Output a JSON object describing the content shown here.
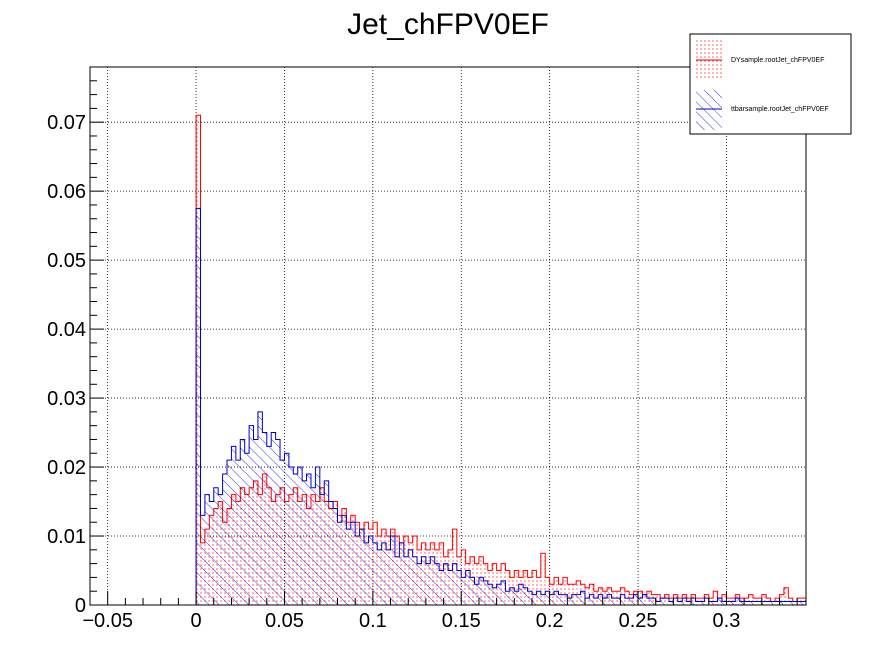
{
  "colors": {
    "series_1": "#ff0000",
    "series_2": "#0000cc",
    "axis": "#000000",
    "grid": "#000000",
    "background": "#ffffff"
  },
  "chart_data": {
    "type": "bar",
    "style": "step-histogram",
    "title": "Jet_chFPV0EF",
    "xlabel": "",
    "ylabel": "",
    "xlim": [
      -0.06,
      0.345
    ],
    "ylim": [
      0,
      0.078
    ],
    "xticks": [
      "−0.05",
      "0",
      "0.05",
      "0.1",
      "0.15",
      "0.2",
      "0.25",
      "0.3"
    ],
    "xtick_values": [
      -0.05,
      0,
      0.05,
      0.1,
      0.15,
      0.2,
      0.25,
      0.3
    ],
    "yticks": [
      "0",
      "0.01",
      "0.02",
      "0.03",
      "0.04",
      "0.05",
      "0.06",
      "0.07"
    ],
    "ytick_values": [
      0,
      0.01,
      0.02,
      0.03,
      0.04,
      0.05,
      0.06,
      0.07
    ],
    "grid": true,
    "legend_position": "top-right",
    "bin_start": 0,
    "bin_width": 0.0025,
    "series": [
      {
        "name": "DYsample.rootJet_chFPV0EF",
        "fill": "dotted",
        "values": [
          0.071,
          0.009,
          0.011,
          0.013,
          0.014,
          0.015,
          0.012,
          0.014,
          0.016,
          0.015,
          0.017,
          0.016,
          0.017,
          0.018,
          0.016,
          0.019,
          0.017,
          0.015,
          0.016,
          0.017,
          0.015,
          0.016,
          0.017,
          0.015,
          0.016,
          0.014,
          0.016,
          0.015,
          0.017,
          0.015,
          0.014,
          0.015,
          0.013,
          0.014,
          0.012,
          0.013,
          0.012,
          0.011,
          0.012,
          0.011,
          0.012,
          0.01,
          0.011,
          0.01,
          0.011,
          0.01,
          0.009,
          0.01,
          0.009,
          0.01,
          0.008,
          0.009,
          0.008,
          0.009,
          0.008,
          0.009,
          0.007,
          0.008,
          0.011,
          0.007,
          0.008,
          0.006,
          0.007,
          0.006,
          0.007,
          0.006,
          0.005,
          0.006,
          0.005,
          0.006,
          0.005,
          0.004,
          0.005,
          0.004,
          0.005,
          0.004,
          0.005,
          0.004,
          0.0075,
          0.004,
          0.003,
          0.004,
          0.003,
          0.004,
          0.003,
          0.003,
          0.0035,
          0.003,
          0.0025,
          0.003,
          0.002,
          0.0025,
          0.002,
          0.0025,
          0.002,
          0.002,
          0.0025,
          0.002,
          0.0015,
          0.002,
          0.002,
          0.0015,
          0.002,
          0.0015,
          0.0015,
          0.001,
          0.0015,
          0.001,
          0.0015,
          0.001,
          0.0015,
          0.001,
          0.0015,
          0.001,
          0.001,
          0.0015,
          0.001,
          0.002,
          0.001,
          0.0015,
          0.001,
          0.001,
          0.0015,
          0.001,
          0.001,
          0.0015,
          0.001,
          0.001,
          0.0015,
          0.001,
          0.0005,
          0.001,
          0.0015,
          0.0025,
          0.001,
          0.0005,
          0.001,
          0.001,
          0.0005,
          0.001,
          0.0005,
          0.001,
          0.0005,
          0.001,
          0.0015,
          0.0005,
          0.0005,
          0.001,
          0.0005,
          0.001,
          0.0005,
          0.001,
          0.0005,
          0.001,
          0.0005,
          0.0005,
          0.001,
          0.0005,
          0.001,
          0.0005,
          0.0005,
          0.0005,
          0.001,
          0.0005,
          0.0005,
          0.001,
          0.0005
        ]
      },
      {
        "name": "ttbarsample.rootJet_chFPV0EF",
        "fill": "hatched",
        "values": [
          0.0575,
          0.013,
          0.016,
          0.015,
          0.017,
          0.016,
          0.019,
          0.021,
          0.023,
          0.021,
          0.024,
          0.022,
          0.026,
          0.024,
          0.028,
          0.025,
          0.023,
          0.025,
          0.024,
          0.021,
          0.022,
          0.02,
          0.019,
          0.02,
          0.018,
          0.019,
          0.017,
          0.02,
          0.016,
          0.018,
          0.015,
          0.014,
          0.012,
          0.013,
          0.011,
          0.012,
          0.01,
          0.011,
          0.009,
          0.01,
          0.009,
          0.008,
          0.009,
          0.008,
          0.01,
          0.007,
          0.009,
          0.007,
          0.008,
          0.007,
          0.006,
          0.007,
          0.006,
          0.007,
          0.006,
          0.005,
          0.006,
          0.005,
          0.006,
          0.005,
          0.004,
          0.005,
          0.004,
          0.003,
          0.004,
          0.0035,
          0.003,
          0.0025,
          0.003,
          0.0035,
          0.002,
          0.0025,
          0.002,
          0.003,
          0.0025,
          0.002,
          0.0015,
          0.002,
          0.0015,
          0.002,
          0.0015,
          0.002,
          0.0015,
          0.0015,
          0.001,
          0.0015,
          0.0015,
          0.002,
          0.001,
          0.0015,
          0.001,
          0.0015,
          0.001,
          0.0015,
          0.001,
          0.001,
          0.0015,
          0.001,
          0.001,
          0.0015,
          0.001,
          0.0015,
          0.001,
          0.001,
          0.0005,
          0.001,
          0.001,
          0.0005,
          0.001,
          0.0005,
          0.001,
          0.0005,
          0.001,
          0.0005,
          0.0005,
          0.001,
          0.0005,
          0.0005,
          0.001,
          0.0005,
          0.0005,
          0.0005,
          0.001,
          0.0005,
          0.0005,
          0.0005,
          0.0005,
          0.0005,
          0.0005,
          0.0005,
          0.0005,
          0.0005,
          0.0005,
          0.0005,
          0.0005,
          0.0005,
          0.0005,
          0.0005,
          0.0005,
          0.0005,
          0.0005,
          0.0005,
          0.0005,
          0.0005,
          0.0005,
          0.0005,
          0.0005,
          0.0005,
          0.0005,
          0.0005,
          0.0005,
          0.0005,
          0.0005,
          0.0005,
          0.0005,
          0.0005,
          0.0005,
          0.0005,
          0.0005,
          0.0005,
          0.0005,
          0.0005,
          0.0005,
          0.0005,
          0.0005,
          0.0005,
          0.0005,
          0.0005
        ]
      }
    ]
  }
}
